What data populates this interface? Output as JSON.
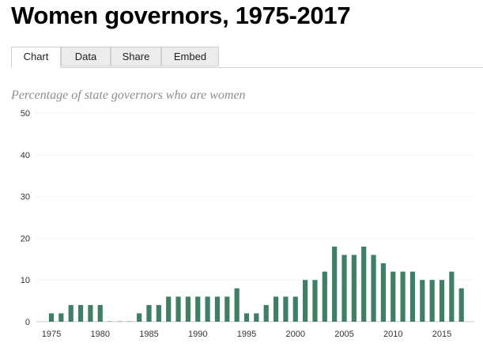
{
  "header": {
    "title": "Women governors, 1975-2017"
  },
  "tabs": [
    {
      "label": "Chart",
      "active": true
    },
    {
      "label": "Data",
      "active": false
    },
    {
      "label": "Share",
      "active": false
    },
    {
      "label": "Embed",
      "active": false
    }
  ],
  "colors": {
    "bar": "#3f7f66",
    "grid": "#dddddd"
  },
  "chart_data": {
    "type": "bar",
    "title": "Women governors, 1975-2017",
    "subtitle": "Percentage of state governors who are women",
    "xlabel": "",
    "ylabel": "",
    "ylim": [
      0,
      50
    ],
    "y_ticks": [
      0,
      10,
      20,
      30,
      40,
      50
    ],
    "x_tick_labels": [
      "1975",
      "1980",
      "1985",
      "1990",
      "1995",
      "2000",
      "2005",
      "2010",
      "2015"
    ],
    "grid": true,
    "categories": [
      1975,
      1976,
      1977,
      1978,
      1979,
      1980,
      1981,
      1982,
      1983,
      1984,
      1985,
      1986,
      1987,
      1988,
      1989,
      1990,
      1991,
      1992,
      1993,
      1994,
      1995,
      1996,
      1997,
      1998,
      1999,
      2000,
      2001,
      2002,
      2003,
      2004,
      2005,
      2006,
      2007,
      2008,
      2009,
      2010,
      2011,
      2012,
      2013,
      2014,
      2015,
      2016,
      2017
    ],
    "values": [
      2,
      2,
      4,
      4,
      4,
      4,
      0,
      0,
      0,
      2,
      4,
      4,
      6,
      6,
      6,
      6,
      6,
      6,
      6,
      8,
      2,
      2,
      4,
      6,
      6,
      6,
      10,
      10,
      12,
      18,
      16,
      16,
      18,
      16,
      14,
      12,
      12,
      12,
      10,
      10,
      10,
      12,
      8
    ]
  }
}
